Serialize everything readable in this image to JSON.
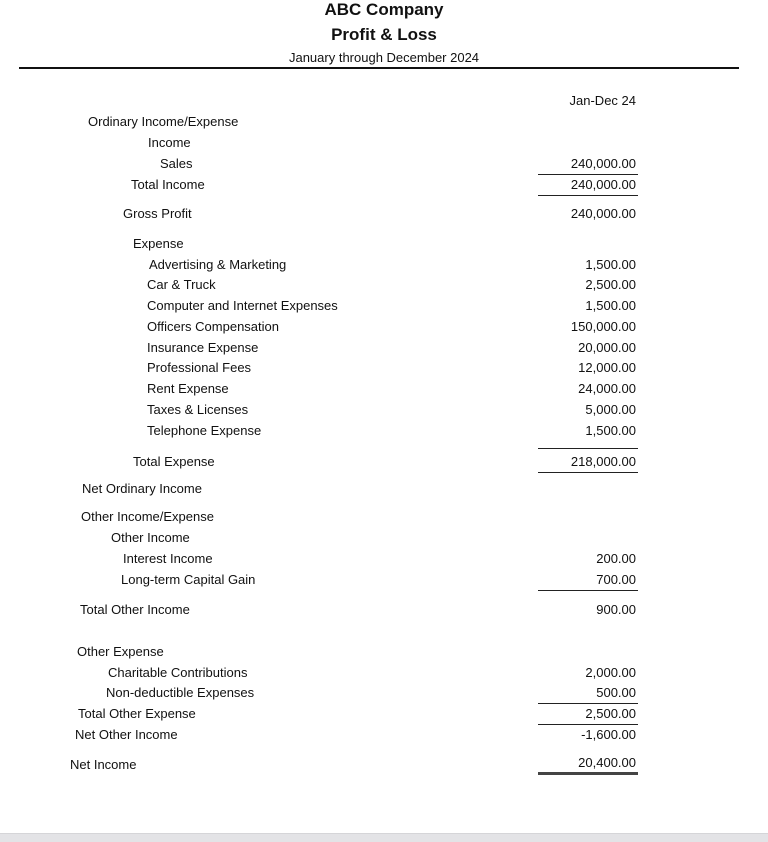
{
  "header": {
    "company": "ABC Company",
    "report_title": "Profit & Loss",
    "period": "January through December 2024",
    "column_header": "Jan-Dec 24"
  },
  "ordinary": {
    "section": "Ordinary Income/Expense",
    "income_heading": "Income",
    "sales": {
      "label": "Sales",
      "value": "240,000.00"
    },
    "total_income": {
      "label": "Total Income",
      "value": "240,000.00"
    },
    "gross_profit": {
      "label": "Gross Profit",
      "value": "240,000.00"
    },
    "expense_heading": "Expense",
    "expenses": [
      {
        "label": "Advertising & Marketing",
        "value": "1,500.00"
      },
      {
        "label": "Car & Truck",
        "value": "2,500.00"
      },
      {
        "label": "Computer and Internet Expenses",
        "value": "1,500.00"
      },
      {
        "label": "Officers Compensation",
        "value": "150,000.00"
      },
      {
        "label": "Insurance Expense",
        "value": "20,000.00"
      },
      {
        "label": "Professional Fees",
        "value": "12,000.00"
      },
      {
        "label": "Rent Expense",
        "value": "24,000.00"
      },
      {
        "label": "Taxes & Licenses",
        "value": "5,000.00"
      },
      {
        "label": "Telephone Expense",
        "value": "1,500.00"
      }
    ],
    "total_expense": {
      "label": "Total Expense",
      "value": "218,000.00"
    },
    "net_ordinary_income": {
      "label": "Net Ordinary Income"
    }
  },
  "other": {
    "section": "Other Income/Expense",
    "other_income_heading": "Other Income",
    "interest_income": {
      "label": "Interest Income",
      "value": "200.00"
    },
    "capital_gain": {
      "label": "Long-term Capital Gain",
      "value": "700.00"
    },
    "total_other_income": {
      "label": "Total Other Income",
      "value": "900.00"
    },
    "other_expense_heading": "Other Expense",
    "charitable": {
      "label": "Charitable Contributions",
      "value": "2,000.00"
    },
    "non_deductible": {
      "label": "Non-deductible Expenses",
      "value": "500.00"
    },
    "total_other_expense": {
      "label": "Total Other Expense",
      "value": "2,500.00"
    },
    "net_other_income": {
      "label": "Net Other Income",
      "value": "-1,600.00"
    }
  },
  "net_income": {
    "label": "Net Income",
    "value": "20,400.00"
  }
}
